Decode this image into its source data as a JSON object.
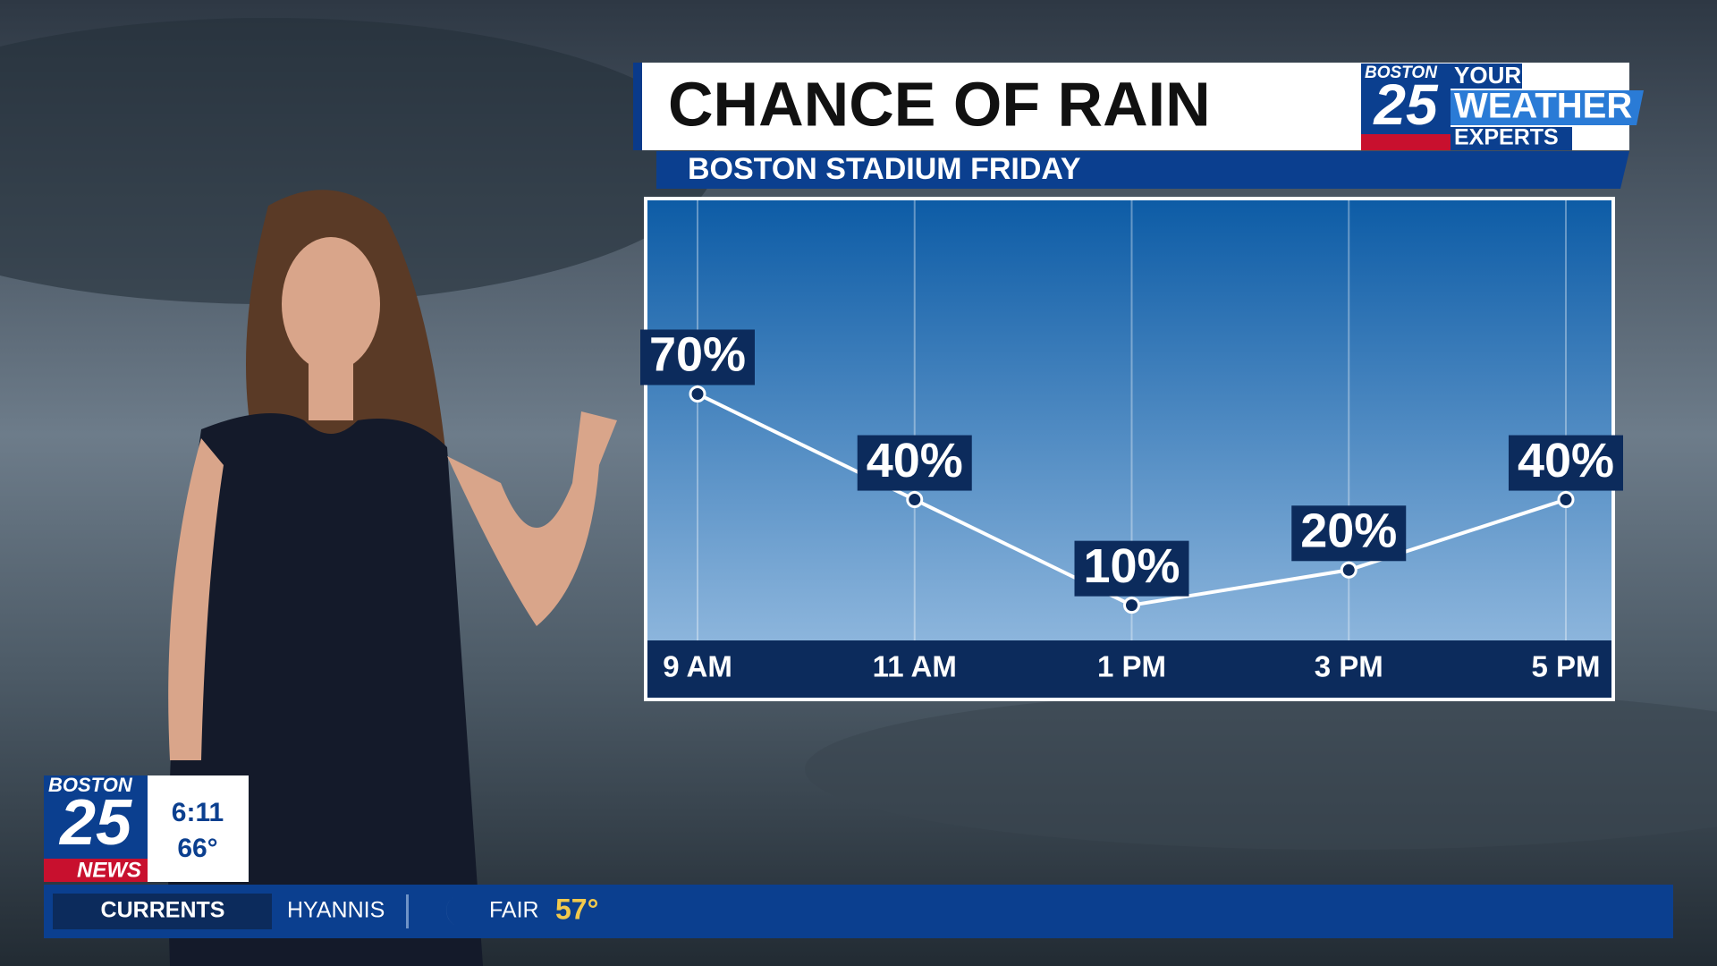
{
  "chart_data": {
    "type": "line",
    "title": "CHANCE OF RAIN",
    "subtitle": "BOSTON STADIUM FRIDAY",
    "categories": [
      "9 AM",
      "11 AM",
      "1 PM",
      "3 PM",
      "5 PM"
    ],
    "series": [
      {
        "color": "#ffffff",
        "values": [
          70,
          40,
          10,
          20,
          40
        ],
        "value_labels": [
          "70%",
          "40%",
          "10%",
          "20%",
          "40%"
        ]
      }
    ],
    "ylim": [
      0,
      125
    ],
    "grid": true
  },
  "branding": {
    "station": "BOSTON",
    "number": "25",
    "tagline": [
      "YOUR",
      "WEATHER",
      "EXPERTS"
    ]
  },
  "bug": {
    "station": "BOSTON",
    "number": "25",
    "label": "NEWS",
    "time": "6:11",
    "temperature": "66°"
  },
  "ticker": {
    "label": "CURRENTS",
    "location": "HYANNIS",
    "condition": "FAIR",
    "temperature": "57°"
  }
}
